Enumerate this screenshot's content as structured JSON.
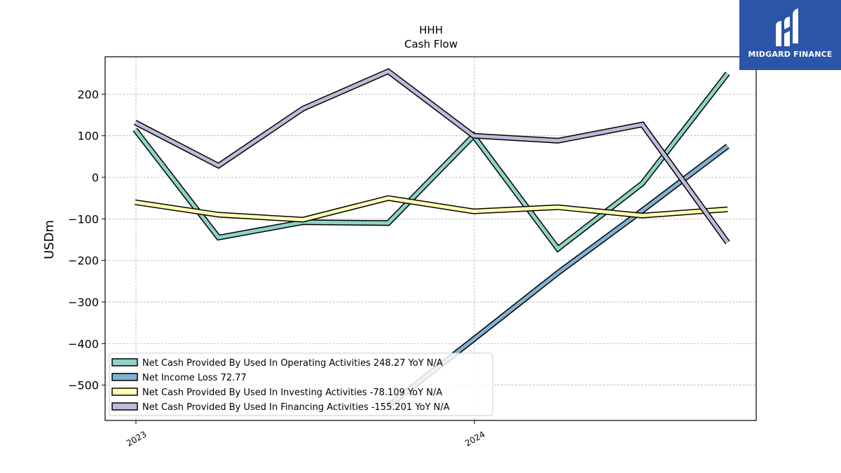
{
  "chart_data": {
    "type": "line",
    "title": "HHH",
    "subtitle": "Cash Flow",
    "xlabel": "",
    "ylabel": "USDm",
    "x": [
      "2022-12-31",
      "2023-03-31",
      "2023-06-30",
      "2023-09-30",
      "2023-12-31",
      "2024-03-31",
      "2024-06-30",
      "2024-09-30"
    ],
    "x_ticks": [
      {
        "date": "2023-01-01",
        "label": "2023"
      },
      {
        "date": "2024-01-01",
        "label": "2024"
      }
    ],
    "ylim": [
      -585,
      290
    ],
    "y_ticks": [
      200,
      100,
      0,
      -100,
      -200,
      -300,
      -400,
      -500
    ],
    "y_tick_labels": [
      "200",
      "100",
      "0",
      "−100",
      "−200",
      "−300",
      "−400",
      "−500"
    ],
    "grid": true,
    "legend_position": "lower-left",
    "series": [
      {
        "name": "Net Cash Provided By Used In Operating Activities  248.27 YoY N/A",
        "color": "#8dd3c7",
        "values": [
          115,
          -145,
          -108,
          -110,
          100,
          -172,
          -15,
          250
        ]
      },
      {
        "name": "Net Income Loss  72.77",
        "color": "#80b1d3",
        "values": [
          null,
          null,
          null,
          -550,
          -390,
          -230,
          -80,
          75
        ]
      },
      {
        "name": "Net Cash Provided By Used In Investing Activities  -78.109 YoY N/A",
        "color": "#ffffb3",
        "values": [
          -60,
          -90,
          -102,
          -50,
          -82,
          -72,
          -92,
          -77
        ]
      },
      {
        "name": "Net Cash Provided By Used In Financing Activities  -155.201 YoY N/A",
        "color": "#bebada",
        "values": [
          132,
          28,
          165,
          255,
          100,
          88,
          127,
          -157
        ]
      }
    ]
  },
  "logo": {
    "text": "MIDGARD FINANCE",
    "color": "#2b55a6"
  }
}
